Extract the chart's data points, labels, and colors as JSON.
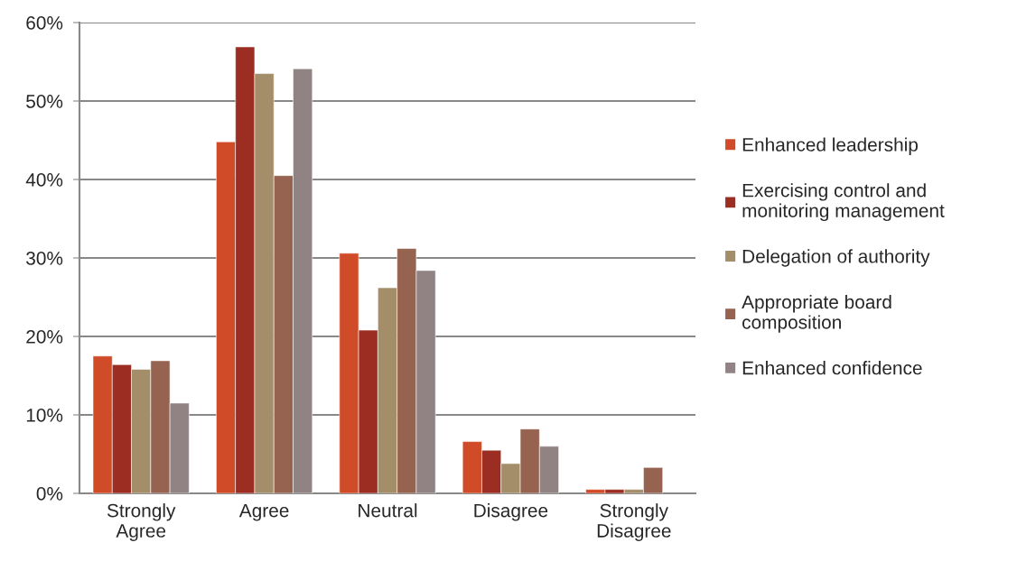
{
  "chart_data": {
    "type": "bar",
    "categories": [
      "Strongly\nAgree",
      "Agree",
      "Neutral",
      "Disagree",
      "Strongly\nDisagree"
    ],
    "series": [
      {
        "name": "Enhanced leadership",
        "color": "#d04b27",
        "values": [
          17.5,
          44.8,
          30.6,
          6.6,
          0.5
        ]
      },
      {
        "name": "Exercising control and\nmonitoring management",
        "color": "#9b2d22",
        "values": [
          16.4,
          56.9,
          20.8,
          5.5,
          0.5
        ]
      },
      {
        "name": "Delegation of authority",
        "color": "#a48d69",
        "values": [
          15.8,
          53.5,
          26.2,
          3.8,
          0.5
        ]
      },
      {
        "name": "Appropriate board\ncomposition",
        "color": "#956350",
        "values": [
          16.9,
          40.5,
          31.2,
          8.2,
          3.3
        ]
      },
      {
        "name": "Enhanced confidence",
        "color": "#918383",
        "values": [
          11.5,
          54.1,
          28.4,
          6.0,
          null
        ]
      }
    ],
    "ylim": [
      0,
      60
    ],
    "yticks": [
      {
        "value": 0,
        "label": "0%"
      },
      {
        "value": 10,
        "label": "10%"
      },
      {
        "value": 20,
        "label": "20%"
      },
      {
        "value": 30,
        "label": "30%"
      },
      {
        "value": 40,
        "label": "40%"
      },
      {
        "value": 50,
        "label": "50%"
      },
      {
        "value": 60,
        "label": "60%"
      }
    ],
    "grid": "y",
    "legend": "right"
  }
}
